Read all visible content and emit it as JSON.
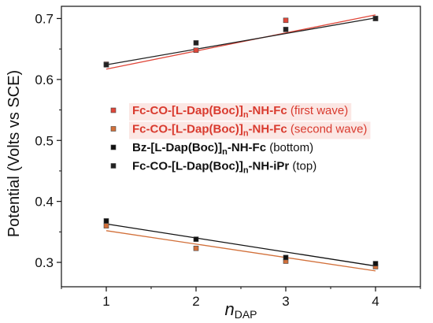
{
  "chart_data": {
    "type": "scatter",
    "x_label_main": "n",
    "x_label_sub": "DAP",
    "y_label": "Potential (Volts vs SCE)",
    "xlim": [
      0.5,
      4.5
    ],
    "ylim": [
      0.26,
      0.72
    ],
    "x_ticks": [
      "1",
      "2",
      "3",
      "4"
    ],
    "y_ticks": [
      "0.3",
      "0.4",
      "0.5",
      "0.6",
      "0.7"
    ],
    "grid": false,
    "legend_position": "center-right",
    "series": [
      {
        "name_pre": "Fc-CO-[L-Dap(Boc)]",
        "name_sub": "n",
        "name_post": "-NH-Fc",
        "name_note": " (first wave)",
        "color": "#e0473a",
        "text_color": "#d93a2e",
        "highlight": true,
        "x": [
          1,
          2,
          3,
          4
        ],
        "y": [
          0.625,
          0.648,
          0.697,
          0.7
        ],
        "fit": [
          0.617,
          0.706
        ]
      },
      {
        "name_pre": "Fc-CO-[L-Dap(Boc)]",
        "name_sub": "n",
        "name_post": "-NH-Fc",
        "name_note": " (second wave)",
        "color": "#d2703a",
        "text_color": "#d93a2e",
        "highlight": true,
        "x": [
          1,
          2,
          3,
          4
        ],
        "y": [
          0.36,
          0.323,
          0.302,
          0.293
        ],
        "fit": [
          0.352,
          0.286
        ]
      },
      {
        "name_pre": "Bz-[L-Dap(Boc)]",
        "name_sub": "n",
        "name_post": "-NH-Fc",
        "name_note": " (bottom)",
        "color": "#111111",
        "text_color": "#111111",
        "highlight": false,
        "x": [
          1,
          2,
          3,
          4
        ],
        "y": [
          0.368,
          0.338,
          0.308,
          0.298
        ],
        "fit": [
          0.363,
          0.294
        ]
      },
      {
        "name_pre": "Fc-CO-[L-Dap(Boc)]",
        "name_sub": "n",
        "name_post": "-NH-iPr",
        "name_note": " (top)",
        "color": "#222222",
        "text_color": "#111111",
        "highlight": false,
        "x": [
          1,
          2,
          3,
          4
        ],
        "y": [
          0.624,
          0.66,
          0.682,
          0.7
        ],
        "fit": [
          0.624,
          0.701
        ]
      }
    ]
  }
}
